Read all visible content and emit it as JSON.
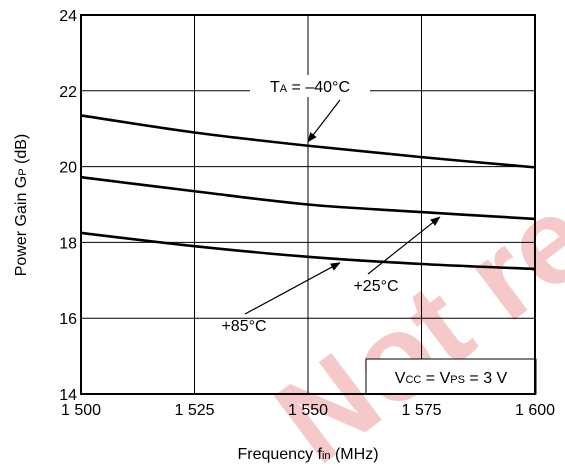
{
  "chart_data": {
    "type": "line",
    "xlabel": {
      "main": "Frequency",
      "sym": "f",
      "sub": "in",
      "unit": "(MHz)"
    },
    "ylabel": {
      "main": "Power Gain",
      "sym": "G",
      "sub": "P",
      "unit": "(dB)"
    },
    "xlim": [
      1500,
      1600
    ],
    "ylim": [
      14,
      24
    ],
    "x_ticks": [
      1500,
      1525,
      1550,
      1575,
      1600
    ],
    "x_tick_labels": [
      "1 500",
      "1 525",
      "1 550",
      "1 575",
      "1 600"
    ],
    "y_ticks": [
      14,
      16,
      18,
      20,
      22,
      24
    ],
    "y_tick_labels": [
      "14",
      "16",
      "18",
      "20",
      "22",
      "24"
    ],
    "grid": true,
    "x": [
      1500,
      1525,
      1550,
      1575,
      1600
    ],
    "series": [
      {
        "name": "T_A = –40°C",
        "values": [
          21.35,
          20.9,
          20.55,
          20.25,
          19.98
        ]
      },
      {
        "name": "+25°C",
        "values": [
          19.72,
          19.35,
          19.0,
          18.8,
          18.62
        ]
      },
      {
        "name": "+85°C",
        "values": [
          18.25,
          17.9,
          17.62,
          17.43,
          17.3
        ]
      }
    ],
    "annotations": [
      {
        "parts": [
          "T",
          "A",
          " = –40°C"
        ],
        "series": 0,
        "target_x": 1550
      },
      {
        "parts": [
          "+25°C"
        ],
        "series": 1,
        "target_x": 1579
      },
      {
        "parts": [
          "+85°C"
        ],
        "series": 2,
        "target_x": 1557
      }
    ],
    "condition_box": {
      "parts": [
        "V",
        "CC",
        " = V",
        "PS",
        " = 3 V"
      ]
    }
  },
  "watermark": "Not recommended"
}
